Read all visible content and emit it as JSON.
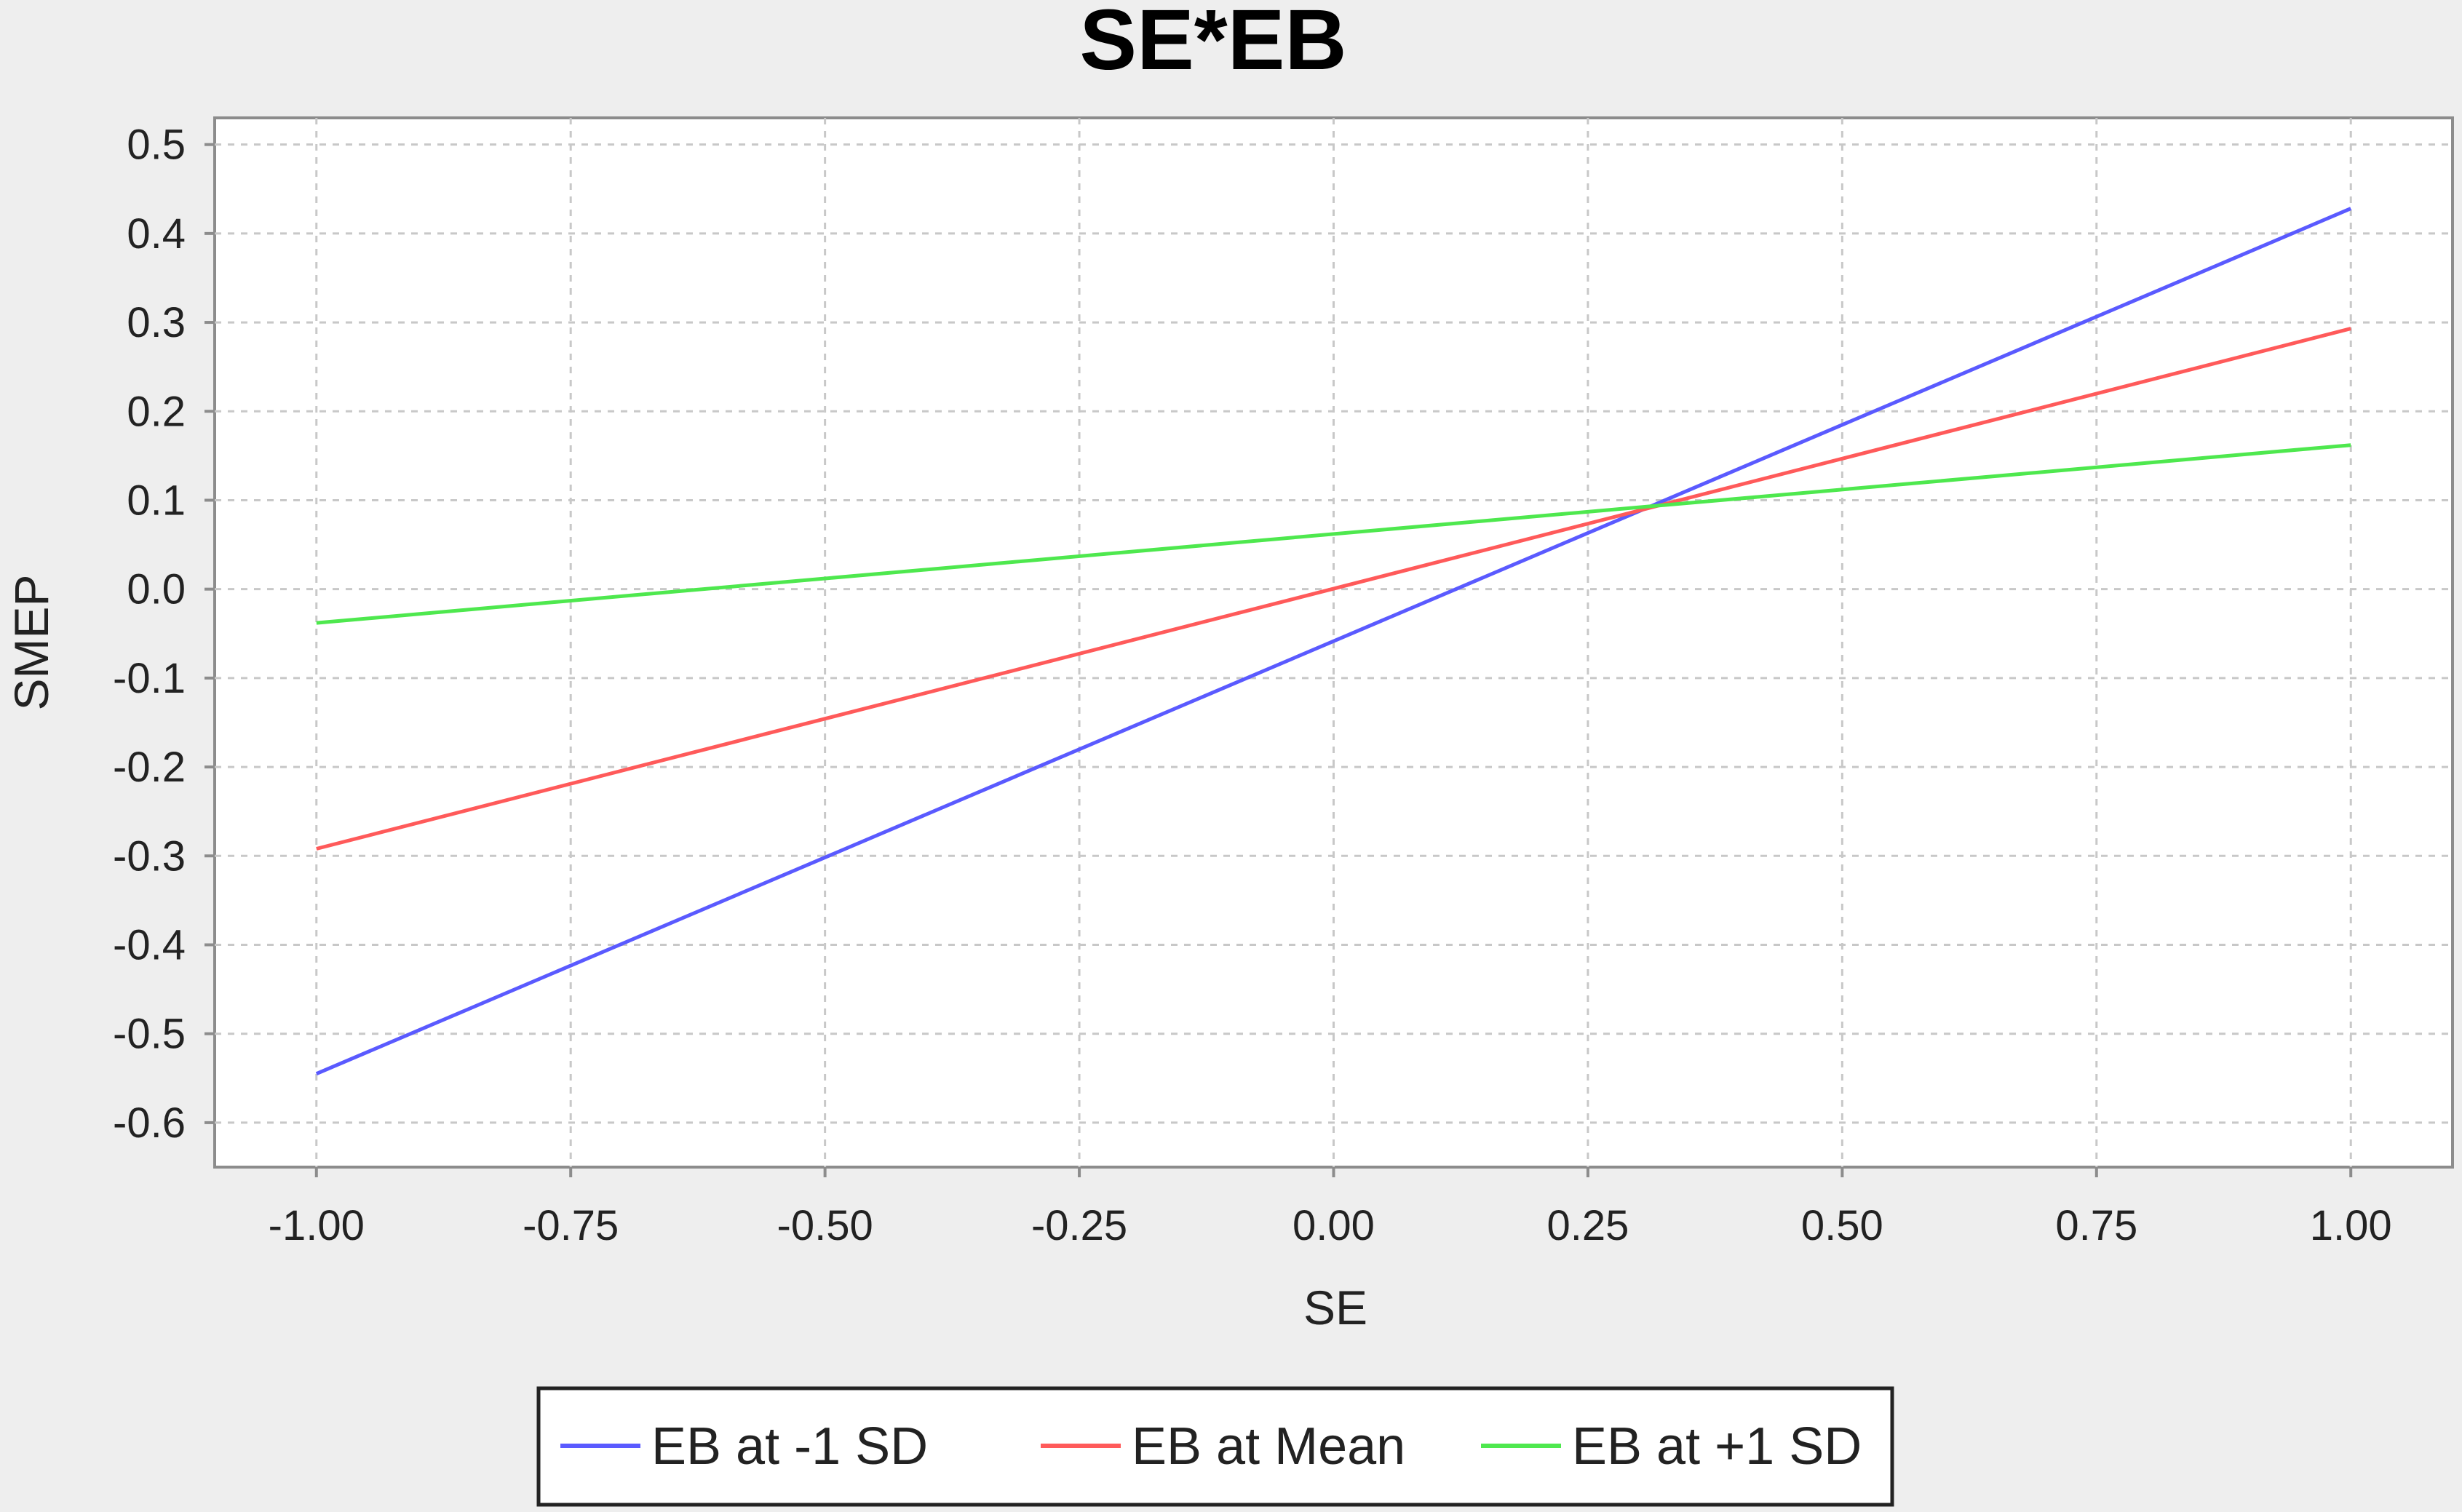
{
  "chart_data": {
    "type": "line",
    "title": "SE*EB",
    "xlabel": "SE",
    "ylabel": "SMEP",
    "xlim": [
      -1.1,
      1.1
    ],
    "ylim": [
      -0.65,
      0.53
    ],
    "x_ticks": [
      -1.0,
      -0.75,
      -0.5,
      -0.25,
      0.0,
      0.25,
      0.5,
      0.75,
      1.0
    ],
    "x_tick_labels": [
      "-1.00",
      "-0.75",
      "-0.50",
      "-0.25",
      "0.00",
      "0.25",
      "0.50",
      "0.75",
      "1.00"
    ],
    "y_ticks": [
      0.5,
      0.4,
      0.3,
      0.2,
      0.1,
      0.0,
      -0.1,
      -0.2,
      -0.3,
      -0.4,
      -0.5,
      -0.6
    ],
    "y_tick_labels": [
      "0.5",
      "0.4",
      "0.3",
      "0.2",
      "0.1",
      "0.0",
      "-0.1",
      "-0.2",
      "-0.3",
      "-0.4",
      "-0.5",
      "-0.6"
    ],
    "grid": true,
    "legend_position": "bottom",
    "series": [
      {
        "name": "EB at -1 SD",
        "color": "#5a5aff",
        "x": [
          -1.0,
          1.0
        ],
        "y": [
          -0.545,
          0.428
        ]
      },
      {
        "name": "EB at Mean",
        "color": "#ff5a5a",
        "x": [
          -1.0,
          1.0
        ],
        "y": [
          -0.292,
          0.293
        ]
      },
      {
        "name": "EB at +1 SD",
        "color": "#4ee84e",
        "x": [
          -1.0,
          1.0
        ],
        "y": [
          -0.038,
          0.162
        ]
      }
    ]
  }
}
